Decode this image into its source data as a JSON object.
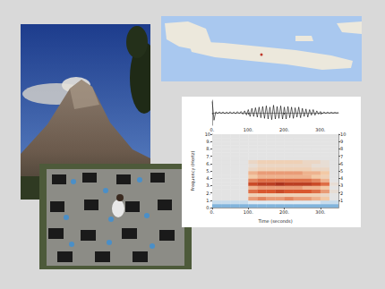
{
  "chart_data": [
    {
      "type": "line",
      "x": [
        0,
        5,
        10,
        15,
        20,
        25,
        30,
        35,
        40,
        45,
        50,
        55,
        60,
        65,
        70,
        75,
        80,
        85,
        90,
        95,
        100,
        105,
        110,
        115,
        120,
        125,
        130,
        135,
        140,
        145,
        150,
        155,
        160,
        165,
        170,
        175,
        180,
        185,
        190,
        195,
        200,
        205,
        210,
        215,
        220,
        225,
        230,
        235,
        240,
        245,
        250,
        255,
        260,
        265,
        270,
        275,
        280,
        285,
        290,
        295,
        300,
        305,
        310,
        315,
        320,
        325,
        330,
        335,
        340,
        345,
        350
      ],
      "values": [
        0.9,
        -0.6,
        0.08,
        -0.06,
        0.07,
        -0.05,
        0.06,
        -0.07,
        0.05,
        -0.06,
        0.08,
        -0.07,
        0.06,
        -0.08,
        0.09,
        -0.07,
        0.1,
        -0.12,
        0.15,
        -0.18,
        0.25,
        -0.3,
        0.35,
        -0.3,
        0.4,
        -0.35,
        0.45,
        -0.4,
        0.5,
        -0.45,
        0.55,
        -0.5,
        0.45,
        -0.55,
        0.6,
        -0.5,
        0.5,
        -0.45,
        0.55,
        -0.5,
        0.45,
        -0.5,
        0.5,
        -0.4,
        0.45,
        -0.45,
        0.4,
        -0.35,
        0.45,
        -0.4,
        0.35,
        -0.3,
        0.3,
        -0.35,
        0.25,
        -0.2,
        0.25,
        -0.2,
        0.15,
        -0.12,
        0.1,
        -0.08,
        0.06,
        -0.05,
        0.05,
        -0.04,
        0.04,
        -0.03,
        0.03,
        -0.02,
        0.02
      ],
      "color": "#000000",
      "xlim": [
        0,
        350
      ],
      "xticks": [
        {
          "value": 0,
          "label": "0."
        },
        {
          "value": 100,
          "label": "100."
        },
        {
          "value": 200,
          "label": "200."
        },
        {
          "value": 300,
          "label": "300."
        }
      ],
      "ylim": [
        -1,
        1
      ],
      "yticks": [],
      "tick_labels": "x"
    },
    {
      "type": "heatmap",
      "xlabel": "Time (seconds)",
      "ylabel": "Frequency (Hertz)",
      "time_bins": [
        0,
        25,
        50,
        75,
        100,
        125,
        150,
        175,
        200,
        225,
        250,
        275,
        300,
        325,
        350
      ],
      "freq_bins": [
        0,
        0.5,
        1,
        1.5,
        2,
        2.5,
        3,
        3.5,
        4,
        4.5,
        5,
        5.5,
        6,
        6.5,
        7,
        7.5,
        8,
        8.5,
        9,
        9.5,
        10
      ],
      "cells": [
        [
          0.05,
          0.05,
          0.05,
          0.05,
          0.05,
          0.05,
          0.05,
          0.05,
          0.05,
          0.05,
          0.05,
          0.05,
          0.05,
          0.05
        ],
        [
          0.2,
          0.2,
          0.2,
          0.2,
          0.25,
          0.25,
          0.25,
          0.25,
          0.25,
          0.25,
          0.25,
          0.25,
          0.2,
          0.2
        ],
        [
          0.3,
          0.3,
          0.3,
          0.3,
          0.6,
          0.65,
          0.6,
          0.6,
          0.65,
          0.6,
          0.6,
          0.55,
          0.5,
          0.3
        ],
        [
          0.3,
          0.3,
          0.3,
          0.3,
          0.45,
          0.45,
          0.45,
          0.45,
          0.45,
          0.45,
          0.45,
          0.45,
          0.4,
          0.3
        ],
        [
          0.3,
          0.3,
          0.3,
          0.3,
          0.7,
          0.75,
          0.75,
          0.8,
          0.75,
          0.75,
          0.75,
          0.7,
          0.6,
          0.35
        ],
        [
          0.3,
          0.3,
          0.3,
          0.3,
          0.55,
          0.6,
          0.6,
          0.6,
          0.6,
          0.6,
          0.55,
          0.55,
          0.5,
          0.3
        ],
        [
          0.3,
          0.3,
          0.3,
          0.3,
          0.8,
          0.85,
          0.85,
          0.9,
          0.85,
          0.85,
          0.85,
          0.8,
          0.7,
          0.35
        ],
        [
          0.3,
          0.3,
          0.3,
          0.3,
          0.65,
          0.7,
          0.7,
          0.7,
          0.7,
          0.7,
          0.7,
          0.65,
          0.55,
          0.3
        ],
        [
          0.3,
          0.3,
          0.3,
          0.3,
          0.5,
          0.55,
          0.55,
          0.55,
          0.55,
          0.55,
          0.55,
          0.5,
          0.45,
          0.3
        ],
        [
          0.3,
          0.3,
          0.3,
          0.3,
          0.55,
          0.6,
          0.6,
          0.6,
          0.6,
          0.6,
          0.55,
          0.55,
          0.5,
          0.3
        ],
        [
          0.3,
          0.3,
          0.3,
          0.3,
          0.4,
          0.45,
          0.45,
          0.45,
          0.45,
          0.45,
          0.45,
          0.4,
          0.4,
          0.3
        ],
        [
          0.3,
          0.3,
          0.3,
          0.3,
          0.35,
          0.4,
          0.4,
          0.4,
          0.4,
          0.4,
          0.4,
          0.35,
          0.35,
          0.3
        ],
        [
          0.3,
          0.3,
          0.3,
          0.3,
          0.4,
          0.45,
          0.45,
          0.45,
          0.45,
          0.45,
          0.4,
          0.4,
          0.35,
          0.3
        ],
        [
          0.3,
          0.3,
          0.3,
          0.3,
          0.3,
          0.3,
          0.3,
          0.3,
          0.3,
          0.3,
          0.3,
          0.3,
          0.3,
          0.3
        ],
        [
          0.3,
          0.3,
          0.3,
          0.3,
          0.3,
          0.3,
          0.3,
          0.3,
          0.3,
          0.3,
          0.3,
          0.3,
          0.3,
          0.3
        ],
        [
          0.3,
          0.3,
          0.3,
          0.3,
          0.3,
          0.3,
          0.3,
          0.3,
          0.3,
          0.3,
          0.3,
          0.3,
          0.3,
          0.3
        ],
        [
          0.3,
          0.3,
          0.3,
          0.3,
          0.3,
          0.3,
          0.3,
          0.3,
          0.3,
          0.3,
          0.3,
          0.3,
          0.3,
          0.3
        ],
        [
          0.3,
          0.3,
          0.3,
          0.3,
          0.3,
          0.3,
          0.3,
          0.3,
          0.3,
          0.3,
          0.3,
          0.3,
          0.3,
          0.3
        ],
        [
          0.3,
          0.3,
          0.3,
          0.3,
          0.3,
          0.3,
          0.3,
          0.3,
          0.3,
          0.3,
          0.3,
          0.3,
          0.3,
          0.3
        ],
        [
          0.3,
          0.3,
          0.3,
          0.3,
          0.3,
          0.3,
          0.3,
          0.3,
          0.3,
          0.3,
          0.3,
          0.3,
          0.3,
          0.3
        ]
      ],
      "color_range": [
        0,
        1
      ],
      "xlim": [
        0,
        350
      ],
      "xticks": [
        {
          "value": 0,
          "label": "0."
        },
        {
          "value": 100,
          "label": "100."
        },
        {
          "value": 200,
          "label": "200."
        },
        {
          "value": 300,
          "label": "300."
        }
      ],
      "ylim": [
        0,
        10
      ],
      "yticks": [
        {
          "value": 0,
          "label": "0."
        },
        {
          "value": 1,
          "label": "1."
        },
        {
          "value": 2,
          "label": "2."
        },
        {
          "value": 3,
          "label": "3."
        },
        {
          "value": 4,
          "label": "4."
        },
        {
          "value": 5,
          "label": "5."
        },
        {
          "value": 6,
          "label": "6."
        },
        {
          "value": 7,
          "label": "7."
        },
        {
          "value": 8,
          "label": "8."
        },
        {
          "value": 9,
          "label": "9."
        },
        {
          "value": 10,
          "label": "10"
        }
      ],
      "y2lim": [
        0,
        10
      ],
      "y2ticks": [
        1,
        2,
        3,
        4,
        5,
        6,
        7,
        8,
        9,
        10
      ]
    }
  ]
}
